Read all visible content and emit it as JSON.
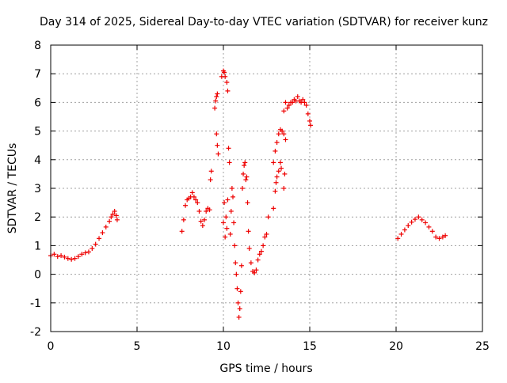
{
  "chart_data": {
    "type": "scatter",
    "title": "Day 314 of 2025, Sidereal Day-to-day VTEC variation (SDTVAR) for receiver kunz",
    "xlabel": "GPS time / hours",
    "ylabel": "SDTVAR / TECUs",
    "xlim": [
      0,
      25
    ],
    "ylim": [
      -2,
      8
    ],
    "xticks": [
      0,
      5,
      10,
      15,
      20,
      25
    ],
    "yticks": [
      -2,
      -1,
      0,
      1,
      2,
      3,
      4,
      5,
      6,
      7,
      8
    ],
    "grid": true,
    "marker": "plus",
    "color": "#ee0000",
    "series": [
      {
        "points": [
          [
            0.0,
            0.65
          ],
          [
            0.2,
            0.7
          ],
          [
            0.4,
            0.62
          ],
          [
            0.6,
            0.65
          ],
          [
            0.8,
            0.6
          ],
          [
            1.0,
            0.55
          ],
          [
            1.2,
            0.52
          ],
          [
            1.4,
            0.55
          ],
          [
            1.6,
            0.62
          ],
          [
            1.8,
            0.7
          ],
          [
            2.0,
            0.75
          ],
          [
            2.2,
            0.78
          ],
          [
            2.4,
            0.9
          ],
          [
            2.6,
            1.05
          ],
          [
            2.8,
            1.25
          ],
          [
            3.0,
            1.45
          ],
          [
            3.2,
            1.65
          ],
          [
            3.4,
            1.85
          ],
          [
            3.5,
            2.0
          ],
          [
            3.6,
            2.1
          ],
          [
            3.7,
            2.2
          ],
          [
            3.8,
            2.05
          ],
          [
            3.85,
            1.9
          ],
          [
            7.6,
            1.5
          ],
          [
            7.7,
            1.9
          ],
          [
            7.8,
            2.4
          ],
          [
            7.9,
            2.6
          ],
          [
            8.0,
            2.65
          ],
          [
            8.1,
            2.7
          ],
          [
            8.2,
            2.85
          ],
          [
            8.3,
            2.7
          ],
          [
            8.4,
            2.6
          ],
          [
            8.5,
            2.5
          ],
          [
            8.6,
            2.2
          ],
          [
            8.7,
            1.85
          ],
          [
            8.8,
            1.7
          ],
          [
            8.9,
            1.9
          ],
          [
            9.0,
            2.2
          ],
          [
            9.1,
            2.3
          ],
          [
            9.2,
            2.25
          ],
          [
            9.25,
            3.3
          ],
          [
            9.3,
            3.6
          ],
          [
            9.5,
            5.8
          ],
          [
            9.55,
            6.05
          ],
          [
            9.6,
            6.2
          ],
          [
            9.65,
            6.3
          ],
          [
            9.6,
            4.9
          ],
          [
            9.65,
            4.5
          ],
          [
            9.7,
            4.2
          ],
          [
            9.9,
            6.9
          ],
          [
            10.0,
            7.1
          ],
          [
            10.05,
            7.05
          ],
          [
            10.1,
            6.9
          ],
          [
            10.2,
            6.7
          ],
          [
            10.25,
            6.4
          ],
          [
            10.0,
            1.8
          ],
          [
            10.05,
            2.5
          ],
          [
            10.1,
            1.3
          ],
          [
            10.15,
            2.0
          ],
          [
            10.2,
            1.6
          ],
          [
            10.25,
            2.6
          ],
          [
            10.3,
            4.4
          ],
          [
            10.35,
            3.9
          ],
          [
            10.4,
            1.4
          ],
          [
            10.45,
            2.2
          ],
          [
            10.5,
            3.0
          ],
          [
            10.55,
            2.7
          ],
          [
            10.6,
            1.8
          ],
          [
            10.65,
            1.0
          ],
          [
            10.7,
            0.4
          ],
          [
            10.75,
            0.0
          ],
          [
            10.8,
            -0.5
          ],
          [
            10.85,
            -1.0
          ],
          [
            10.9,
            -1.5
          ],
          [
            10.95,
            -1.2
          ],
          [
            11.0,
            -0.6
          ],
          [
            11.05,
            0.3
          ],
          [
            11.1,
            3.0
          ],
          [
            11.15,
            3.5
          ],
          [
            11.2,
            3.8
          ],
          [
            11.25,
            3.9
          ],
          [
            11.3,
            3.3
          ],
          [
            11.35,
            3.4
          ],
          [
            11.4,
            2.5
          ],
          [
            11.45,
            1.5
          ],
          [
            11.5,
            0.9
          ],
          [
            11.6,
            0.4
          ],
          [
            11.7,
            0.1
          ],
          [
            11.8,
            0.05
          ],
          [
            11.9,
            0.15
          ],
          [
            12.0,
            0.5
          ],
          [
            12.1,
            0.7
          ],
          [
            12.2,
            0.8
          ],
          [
            12.3,
            1.0
          ],
          [
            12.4,
            1.3
          ],
          [
            12.5,
            1.4
          ],
          [
            12.6,
            2.0
          ],
          [
            12.9,
            2.3
          ],
          [
            13.0,
            2.9
          ],
          [
            13.05,
            3.2
          ],
          [
            13.1,
            3.4
          ],
          [
            13.2,
            3.6
          ],
          [
            13.3,
            3.9
          ],
          [
            13.35,
            3.7
          ],
          [
            12.9,
            3.9
          ],
          [
            13.0,
            4.3
          ],
          [
            13.1,
            4.6
          ],
          [
            13.2,
            4.9
          ],
          [
            13.3,
            5.05
          ],
          [
            13.4,
            5.0
          ],
          [
            13.5,
            4.9
          ],
          [
            13.6,
            4.7
          ],
          [
            13.5,
            3.0
          ],
          [
            13.55,
            3.5
          ],
          [
            13.5,
            5.7
          ],
          [
            13.6,
            6.0
          ],
          [
            13.7,
            5.8
          ],
          [
            13.8,
            5.9
          ],
          [
            13.9,
            6.0
          ],
          [
            14.0,
            6.0
          ],
          [
            14.1,
            6.1
          ],
          [
            14.2,
            6.05
          ],
          [
            14.3,
            6.2
          ],
          [
            14.4,
            6.05
          ],
          [
            14.5,
            6.0
          ],
          [
            14.6,
            6.1
          ],
          [
            14.7,
            6.0
          ],
          [
            14.8,
            5.9
          ],
          [
            14.9,
            5.6
          ],
          [
            15.0,
            5.35
          ],
          [
            15.05,
            5.2
          ],
          [
            20.1,
            1.25
          ],
          [
            20.3,
            1.4
          ],
          [
            20.5,
            1.55
          ],
          [
            20.7,
            1.7
          ],
          [
            20.9,
            1.82
          ],
          [
            21.1,
            1.92
          ],
          [
            21.3,
            2.0
          ],
          [
            21.5,
            1.9
          ],
          [
            21.7,
            1.8
          ],
          [
            21.9,
            1.65
          ],
          [
            22.1,
            1.5
          ],
          [
            22.3,
            1.3
          ],
          [
            22.5,
            1.25
          ],
          [
            22.7,
            1.3
          ],
          [
            22.85,
            1.35
          ]
        ]
      }
    ]
  }
}
